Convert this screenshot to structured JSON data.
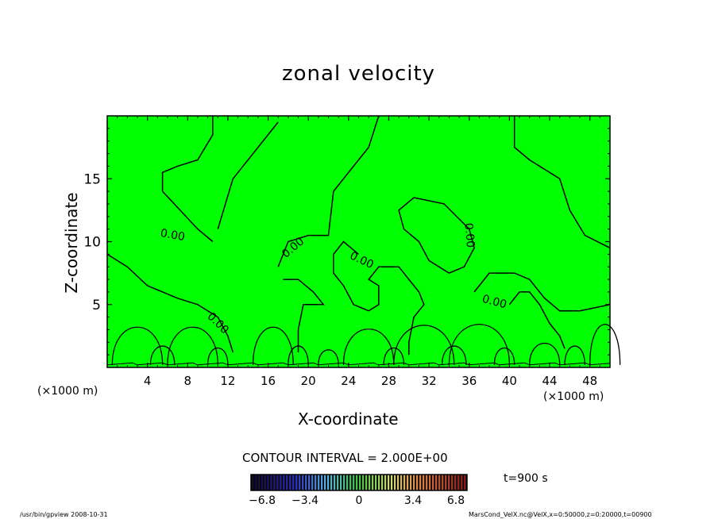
{
  "chart_data": {
    "type": "heatmap",
    "title": "zonal velocity",
    "xlabel": "X-coordinate",
    "ylabel": "Z-coordinate",
    "x_unit_left": "(×1000 m)",
    "x_unit_right": "(×1000 m)",
    "xlim": [
      0,
      50
    ],
    "ylim": [
      0,
      20
    ],
    "x_ticks": [
      4,
      8,
      12,
      16,
      20,
      24,
      28,
      32,
      36,
      40,
      44,
      48
    ],
    "y_ticks": [
      5,
      10,
      15
    ],
    "fill_color": "#00ff00",
    "contour_label": "0.00",
    "contour_interval_text": "CONTOUR INTERVAL = 2.000E+00",
    "time_text": "t=900 s",
    "colorbar": {
      "min": -6.8,
      "max": 6.8,
      "tick_labels": [
        "−6.8",
        "−3.4",
        "0",
        "3.4",
        "6.8"
      ],
      "tick_values": [
        -6.8,
        -3.4,
        0,
        3.4,
        6.8
      ]
    },
    "contour_lines": [
      {
        "points": [
          [
            10.5,
            10.0
          ],
          [
            9.0,
            11.0
          ],
          [
            5.5,
            14.0
          ],
          [
            5.5,
            15.5
          ],
          [
            7.0,
            16.0
          ],
          [
            9.0,
            16.5
          ],
          [
            10.5,
            18.5
          ],
          [
            10.5,
            20.0
          ]
        ]
      },
      {
        "points": [
          [
            11.0,
            11.0
          ],
          [
            12.5,
            15.0
          ],
          [
            15.0,
            17.5
          ],
          [
            17.0,
            19.5
          ]
        ]
      },
      {
        "points": [
          [
            0.0,
            9.0
          ],
          [
            2.0,
            8.0
          ],
          [
            4.0,
            6.5
          ],
          [
            7.0,
            5.5
          ],
          [
            9.0,
            5.0
          ],
          [
            11.0,
            4.0
          ],
          [
            12.0,
            2.5
          ],
          [
            12.5,
            1.2
          ]
        ]
      },
      {
        "points": [
          [
            17.0,
            8.0
          ],
          [
            18.0,
            10.0
          ],
          [
            20.0,
            10.5
          ],
          [
            22.0,
            10.5
          ],
          [
            22.5,
            14.0
          ],
          [
            24.0,
            15.5
          ],
          [
            26.0,
            17.5
          ],
          [
            27.0,
            20.0
          ]
        ]
      },
      {
        "points": [
          [
            17.5,
            7.0
          ],
          [
            19.0,
            7.0
          ],
          [
            20.5,
            6.0
          ],
          [
            21.5,
            5.0
          ],
          [
            19.5,
            5.0
          ],
          [
            19.0,
            3.0
          ],
          [
            19.0,
            1.2
          ]
        ]
      },
      {
        "points": [
          [
            25.0,
            9.0
          ],
          [
            23.5,
            10.0
          ],
          [
            22.5,
            9.0
          ],
          [
            22.5,
            7.5
          ],
          [
            23.5,
            6.5
          ],
          [
            24.5,
            5.0
          ],
          [
            26.0,
            4.5
          ],
          [
            27.0,
            5.0
          ],
          [
            27.0,
            6.5
          ],
          [
            26.0,
            7.0
          ],
          [
            27.0,
            8.0
          ],
          [
            29.0,
            8.0
          ],
          [
            30.0,
            7.0
          ],
          [
            31.0,
            6.0
          ],
          [
            31.5,
            5.0
          ],
          [
            30.5,
            4.0
          ],
          [
            30.0,
            2.0
          ],
          [
            30.0,
            1.0
          ]
        ]
      },
      {
        "points": [
          [
            36.0,
            11.0
          ],
          [
            33.5,
            13.0
          ],
          [
            30.5,
            13.5
          ],
          [
            29.0,
            12.5
          ],
          [
            29.5,
            11.0
          ],
          [
            31.0,
            10.0
          ],
          [
            32.0,
            8.5
          ],
          [
            34.0,
            7.5
          ],
          [
            35.5,
            8.0
          ],
          [
            36.5,
            9.5
          ],
          [
            36.0,
            11.0
          ]
        ]
      },
      {
        "points": [
          [
            36.5,
            6.0
          ],
          [
            38.0,
            7.5
          ],
          [
            40.5,
            7.5
          ],
          [
            42.0,
            7.0
          ],
          [
            43.5,
            5.5
          ],
          [
            45.0,
            4.5
          ],
          [
            47.0,
            4.5
          ],
          [
            50.0,
            5.0
          ]
        ]
      },
      {
        "points": [
          [
            40.0,
            5.0
          ],
          [
            41.0,
            6.0
          ],
          [
            42.0,
            6.0
          ],
          [
            43.0,
            5.0
          ],
          [
            44.0,
            3.5
          ],
          [
            45.0,
            2.5
          ],
          [
            45.5,
            1.5
          ]
        ]
      },
      {
        "points": [
          [
            40.5,
            20.0
          ],
          [
            40.5,
            17.5
          ],
          [
            42.0,
            16.5
          ],
          [
            45.0,
            15.0
          ],
          [
            46.0,
            12.5
          ],
          [
            47.5,
            10.5
          ],
          [
            50.0,
            9.5
          ]
        ]
      }
    ],
    "contour_label_positions": [
      {
        "text": "0.00",
        "x": 6.5,
        "y": 10.5,
        "rotate": 10
      },
      {
        "text": "0.00",
        "x": 18.5,
        "y": 9.5,
        "rotate": -40
      },
      {
        "text": "0.00",
        "x": 25.3,
        "y": 8.5,
        "rotate": 25
      },
      {
        "text": "0.00",
        "x": 36.0,
        "y": 10.5,
        "rotate": 85
      },
      {
        "text": "0.00",
        "x": 11.0,
        "y": 3.5,
        "rotate": 45
      },
      {
        "text": "0.00",
        "x": 38.5,
        "y": 5.2,
        "rotate": 15
      }
    ]
  },
  "footer": {
    "left": "/usr/bin/gpview   2008-10-31",
    "right": "MarsCond_VelX.nc@VelX,x=0:50000,z=0:20000,t=00900"
  }
}
